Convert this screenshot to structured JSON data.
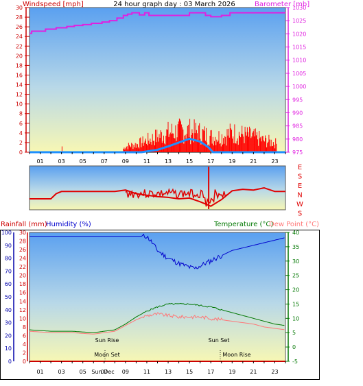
{
  "header": {
    "windspeed_label": "Windspeed [mph]",
    "title": "24 hour graph day : 03 March 2026",
    "barometer_label": "Barometer [mb]"
  },
  "lower_header": {
    "rainfall_label": "Rainfall (mm)",
    "humidity_label": "Humidity (%)",
    "temperature_label": "Temperature (°C)",
    "dewpoint_label": "Dew Point (°C)"
  },
  "direction_labels": [
    "E",
    "S",
    "E",
    "N",
    "W",
    "S"
  ],
  "hour_ticks": [
    "01",
    "03",
    "05",
    "07",
    "09",
    "11",
    "13",
    "15",
    "17",
    "19",
    "21",
    "23"
  ],
  "annotations": {
    "sun_rise": "Sun Rise",
    "sun_set": "Sun Set",
    "moon_set": "Moon Set",
    "moon_rise": "Moon Rise",
    "sun_dec_overlap": "Sun Dec"
  },
  "colors": {
    "wind_gust": "#ff0000",
    "wind_avg": "#1e90ff",
    "barometer": "#e020e0",
    "direction": "#e00000",
    "humidity": "#0000cc",
    "temperature": "#007700",
    "dewpoint": "#ff7777",
    "rain": "#cc0000",
    "left_axis_top": "#cc0000",
    "left_axis_bottom": "#0000aa",
    "right_axis_bottom": "#007700"
  },
  "chart_data": [
    {
      "type": "line",
      "name": "wind_barometer",
      "xlabel": "",
      "x_range_hours": [
        0,
        24
      ],
      "left_axis": {
        "label": "Windspeed [mph]",
        "ylim": [
          0,
          30
        ],
        "ticks": [
          0,
          2,
          4,
          6,
          8,
          10,
          12,
          14,
          16,
          18,
          20,
          22,
          24,
          26,
          28,
          30
        ]
      },
      "right_axis": {
        "label": "Barometer [mb]",
        "ylim": [
          975,
          1030
        ],
        "ticks": [
          975,
          980,
          985,
          990,
          995,
          1000,
          1005,
          1010,
          1015,
          1020,
          1025,
          1030
        ]
      },
      "series": [
        {
          "name": "Barometer [mb]",
          "x": [
            0,
            0.2,
            1.5,
            2.5,
            3.5,
            4.2,
            5.0,
            5.8,
            6.8,
            7.5,
            8.2,
            8.8,
            9.2,
            9.6,
            10.3,
            10.8,
            11.2,
            12,
            14.5,
            15.0,
            16.0,
            16.5,
            17.0,
            18.0,
            18.8,
            24
          ],
          "values": [
            1020.2,
            1021.0,
            1021.8,
            1022.3,
            1022.8,
            1023.2,
            1023.5,
            1024.0,
            1024.5,
            1025.0,
            1026.0,
            1027.0,
            1027.5,
            1028.0,
            1027.2,
            1028.0,
            1027.0,
            1027.0,
            1027.0,
            1028.0,
            1028.0,
            1027.0,
            1026.5,
            1027.0,
            1028.0,
            1028.0
          ]
        },
        {
          "name": "Wind gust (mph)",
          "x": [
            0,
            3.0,
            3.1,
            8.5,
            9.0,
            10.0,
            11.0,
            12.0,
            13.0,
            14.0,
            15.0,
            16.0,
            17.0,
            18.0,
            19.0,
            20.0,
            21.0,
            22.0,
            23.0,
            24.0
          ],
          "values": [
            0,
            0,
            1,
            0,
            1.5,
            2,
            3,
            4,
            5,
            5.5,
            5.5,
            5,
            4,
            4,
            5,
            4.5,
            4,
            3,
            2.5,
            0
          ]
        },
        {
          "name": "Wind average (mph)",
          "x": [
            0,
            10.5,
            12.0,
            13.0,
            14.0,
            15.0,
            16.0,
            16.8,
            17.2,
            24.0
          ],
          "values": [
            0,
            0,
            0.5,
            1.2,
            2.0,
            2.8,
            2.2,
            1.0,
            0,
            0
          ]
        }
      ]
    },
    {
      "type": "line",
      "name": "wind_direction",
      "xlabel": "",
      "x_range_hours": [
        0,
        24
      ],
      "ylabels_top_to_bottom": [
        "E",
        "S",
        "E",
        "N",
        "W",
        "S"
      ],
      "series": [
        {
          "name": "Direction",
          "x": [
            0,
            2.0,
            2.5,
            3.0,
            8.0,
            9.0,
            10.0,
            11.0,
            12.0,
            13.0,
            14.0,
            15.0,
            16.0,
            17.0,
            18.0,
            19.0,
            20.0,
            21.0,
            22.0,
            23.0,
            24.0
          ],
          "values": [
            4.5,
            4.5,
            3.8,
            3.5,
            3.5,
            3.3,
            3.8,
            4.0,
            4.2,
            4.3,
            4.5,
            4.4,
            4.9,
            5.5,
            4.6,
            3.4,
            3.2,
            3.3,
            3.0,
            3.5,
            3.5
          ]
        }
      ]
    },
    {
      "type": "line",
      "name": "humidity_temperature",
      "xlabel": "",
      "x_range_hours": [
        0,
        24
      ],
      "left_axis_rain": {
        "label": "Rainfall (mm)",
        "ylim": [
          0,
          30
        ],
        "ticks": [
          0,
          2,
          4,
          6,
          8,
          10,
          12,
          14,
          16,
          18,
          20,
          22,
          24,
          26,
          28,
          30
        ]
      },
      "left_axis_humidity": {
        "label": "Humidity (%)",
        "ylim": [
          0,
          100
        ],
        "ticks": [
          0,
          10,
          20,
          30,
          40,
          50,
          60,
          70,
          80,
          90,
          100
        ]
      },
      "right_axis": {
        "label": "Temperature (°C)",
        "ylim": [
          -5,
          40
        ],
        "ticks": [
          -5,
          0,
          5,
          10,
          15,
          20,
          25,
          30,
          35,
          40
        ]
      },
      "series": [
        {
          "name": "Humidity (%)",
          "x": [
            0,
            11.0,
            11.5,
            12.0,
            13.0,
            14.0,
            15.0,
            15.5,
            16.0,
            17.0,
            18.0,
            19.0,
            20.0,
            21.0,
            22.0,
            23.0,
            24.0
          ],
          "values": [
            97,
            97,
            92,
            86,
            80,
            76,
            73,
            72,
            74,
            78,
            82,
            86,
            88,
            90,
            92,
            94,
            96
          ]
        },
        {
          "name": "Temperature (°C)",
          "x": [
            0,
            2,
            4,
            6,
            8,
            9,
            10,
            11,
            12,
            13,
            14,
            15,
            16,
            17,
            18,
            19,
            20,
            21,
            22,
            23,
            24
          ],
          "values": [
            6.0,
            5.5,
            5.5,
            5.0,
            6.0,
            8.0,
            10.5,
            12.5,
            14.0,
            15.0,
            15.0,
            15.0,
            14.5,
            14.0,
            13.0,
            12.0,
            11.0,
            10.0,
            9.0,
            8.0,
            7.5
          ]
        },
        {
          "name": "Dew Point (°C)",
          "x": [
            0,
            2,
            4,
            6,
            8,
            9,
            10,
            11,
            12,
            13,
            14,
            15,
            16,
            17,
            18,
            19,
            20,
            21,
            22,
            23,
            24
          ],
          "values": [
            5.5,
            5.0,
            5.0,
            4.5,
            5.5,
            7.5,
            9.5,
            11.0,
            11.5,
            11.0,
            10.5,
            10.5,
            10.5,
            10.0,
            9.5,
            9.0,
            8.5,
            8.0,
            7.0,
            6.5,
            6.0
          ]
        },
        {
          "name": "Rainfall (mm)",
          "x": [
            0,
            24
          ],
          "values": [
            0,
            0
          ]
        }
      ],
      "annotations": {
        "sun_rise_hour": 6.7,
        "sun_set_hour": 17.8,
        "moon_set_hour": 6.7,
        "moon_rise_hour": 18.1
      }
    }
  ]
}
